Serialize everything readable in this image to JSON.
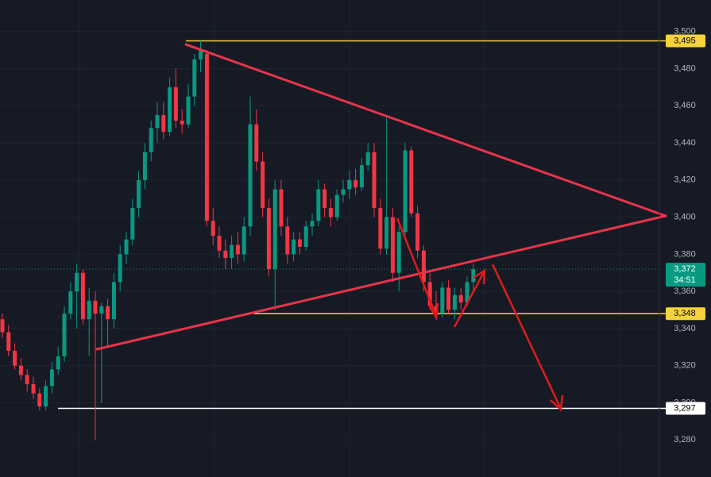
{
  "chart_data": {
    "type": "candlestick",
    "ylim": [
      3260,
      3517
    ],
    "yticks": [
      {
        "value": 3280,
        "label": "3,280"
      },
      {
        "value": 3300,
        "label": "3,300"
      },
      {
        "value": 3320,
        "label": "3,320"
      },
      {
        "value": 3340,
        "label": "3,340"
      },
      {
        "value": 3360,
        "label": "3,360"
      },
      {
        "value": 3380,
        "label": "3,380"
      },
      {
        "value": 3400,
        "label": "3,400"
      },
      {
        "value": 3420,
        "label": "3,420"
      },
      {
        "value": 3440,
        "label": "3,440"
      },
      {
        "value": 3460,
        "label": "3,460"
      },
      {
        "value": 3480,
        "label": "3,480"
      },
      {
        "value": 3500,
        "label": "3,500"
      }
    ],
    "up_color": "#089981",
    "down_color": "#f23645",
    "ohlc": [
      [
        3345,
        3348,
        3335,
        3338
      ],
      [
        3338,
        3342,
        3325,
        3328
      ],
      [
        3328,
        3332,
        3318,
        3320
      ],
      [
        3320,
        3324,
        3312,
        3315
      ],
      [
        3315,
        3318,
        3306,
        3310
      ],
      [
        3310,
        3314,
        3302,
        3305
      ],
      [
        3305,
        3308,
        3296,
        3298
      ],
      [
        3298,
        3312,
        3296,
        3309
      ],
      [
        3309,
        3322,
        3305,
        3318
      ],
      [
        3318,
        3330,
        3315,
        3325
      ],
      [
        3325,
        3352,
        3322,
        3348
      ],
      [
        3348,
        3365,
        3345,
        3360
      ],
      [
        3360,
        3375,
        3340,
        3370
      ],
      [
        3370,
        3372,
        3342,
        3345
      ],
      [
        3345,
        3362,
        3325,
        3355
      ],
      [
        3355,
        3360,
        3280,
        3348
      ],
      [
        3348,
        3354,
        3300,
        3352
      ],
      [
        3352,
        3356,
        3330,
        3345
      ],
      [
        3345,
        3370,
        3340,
        3365
      ],
      [
        3365,
        3385,
        3360,
        3380
      ],
      [
        3380,
        3392,
        3375,
        3388
      ],
      [
        3388,
        3410,
        3385,
        3405
      ],
      [
        3405,
        3425,
        3400,
        3420
      ],
      [
        3420,
        3440,
        3415,
        3435
      ],
      [
        3435,
        3452,
        3430,
        3448
      ],
      [
        3448,
        3462,
        3440,
        3455
      ],
      [
        3455,
        3462,
        3442,
        3446
      ],
      [
        3446,
        3475,
        3444,
        3470
      ],
      [
        3470,
        3480,
        3448,
        3452
      ],
      [
        3452,
        3458,
        3445,
        3450
      ],
      [
        3450,
        3472,
        3448,
        3465
      ],
      [
        3465,
        3488,
        3460,
        3485
      ],
      [
        3485,
        3495,
        3478,
        3490
      ],
      [
        3488,
        3490,
        3395,
        3398
      ],
      [
        3398,
        3405,
        3385,
        3390
      ],
      [
        3390,
        3395,
        3378,
        3382
      ],
      [
        3382,
        3388,
        3372,
        3378
      ],
      [
        3378,
        3390,
        3372,
        3385
      ],
      [
        3385,
        3392,
        3375,
        3380
      ],
      [
        3380,
        3400,
        3376,
        3395
      ],
      [
        3395,
        3465,
        3390,
        3450
      ],
      [
        3450,
        3458,
        3425,
        3430
      ],
      [
        3430,
        3435,
        3400,
        3405
      ],
      [
        3405,
        3410,
        3368,
        3372
      ],
      [
        3372,
        3420,
        3350,
        3415
      ],
      [
        3415,
        3420,
        3390,
        3395
      ],
      [
        3395,
        3400,
        3375,
        3380
      ],
      [
        3380,
        3392,
        3376,
        3388
      ],
      [
        3388,
        3392,
        3380,
        3384
      ],
      [
        3384,
        3398,
        3382,
        3395
      ],
      [
        3395,
        3402,
        3390,
        3398
      ],
      [
        3398,
        3420,
        3395,
        3415
      ],
      [
        3415,
        3418,
        3400,
        3405
      ],
      [
        3405,
        3410,
        3395,
        3400
      ],
      [
        3400,
        3415,
        3398,
        3412
      ],
      [
        3412,
        3420,
        3408,
        3415
      ],
      [
        3415,
        3425,
        3410,
        3420
      ],
      [
        3420,
        3426,
        3412,
        3416
      ],
      [
        3416,
        3432,
        3414,
        3428
      ],
      [
        3428,
        3440,
        3425,
        3435
      ],
      [
        3435,
        3440,
        3400,
        3405
      ],
      [
        3405,
        3410,
        3380,
        3383
      ],
      [
        3383,
        3455,
        3380,
        3400
      ],
      [
        3400,
        3405,
        3365,
        3370
      ],
      [
        3370,
        3395,
        3360,
        3392
      ],
      [
        3392,
        3440,
        3388,
        3436
      ],
      [
        3436,
        3438,
        3400,
        3402
      ],
      [
        3402,
        3406,
        3378,
        3382
      ],
      [
        3382,
        3385,
        3360,
        3365
      ],
      [
        3365,
        3370,
        3350,
        3352
      ],
      [
        3352,
        3360,
        3345,
        3348
      ],
      [
        3348,
        3365,
        3346,
        3362
      ],
      [
        3362,
        3366,
        3348,
        3350
      ],
      [
        3350,
        3362,
        3345,
        3358
      ],
      [
        3358,
        3362,
        3350,
        3354
      ],
      [
        3354,
        3368,
        3352,
        3365
      ],
      [
        3365,
        3375,
        3360,
        3372
      ]
    ],
    "levels": [
      {
        "value": 3495,
        "label": "3,495",
        "color": "#f5d33b"
      },
      {
        "value": 3348,
        "label": "3,348",
        "color": "#f5d33b"
      },
      {
        "value": 3297,
        "label": "3,297",
        "color": "#ffffff"
      }
    ],
    "last_price": {
      "value": 3372,
      "label": "3,372",
      "timer": "34:51",
      "color": "#089981"
    }
  }
}
